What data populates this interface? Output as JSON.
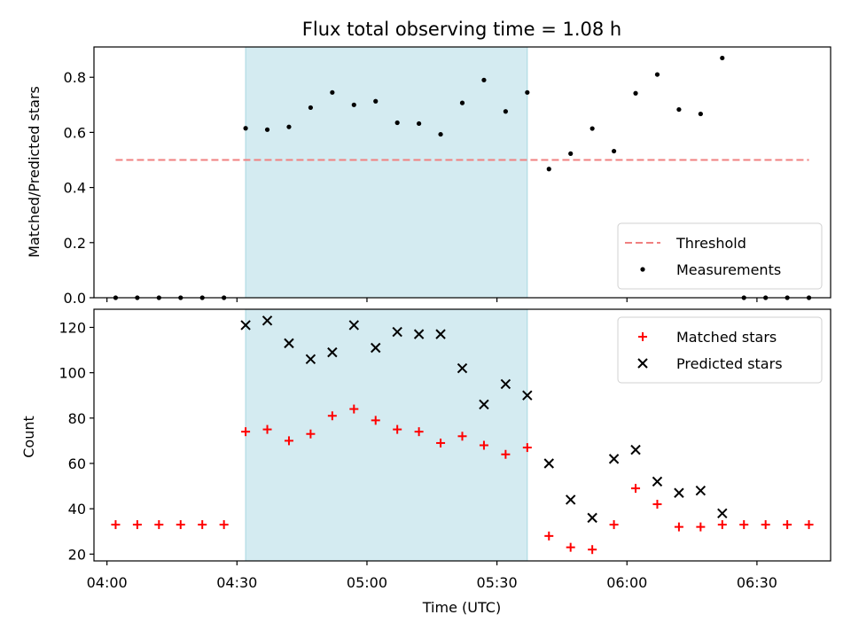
{
  "chart_data": [
    {
      "type": "scatter",
      "title": "Flux total observing time = 1.08 h",
      "xlabel": "",
      "ylabel": "Matched/Predicted stars",
      "ylim": [
        0,
        0.91
      ],
      "yticks": [
        "0.0",
        "0.2",
        "0.4",
        "0.6",
        "0.8"
      ],
      "grid": false,
      "legend_position": "bottom-right",
      "highlight_span": {
        "start": "04:32",
        "end": "05:37"
      },
      "threshold": {
        "name": "Threshold",
        "value": 0.5,
        "x_start": "04:02",
        "x_end": "06:42",
        "color": "#f08080"
      },
      "series": [
        {
          "name": "Measurements",
          "marker": "dot",
          "color": "#000000",
          "x": [
            "04:02",
            "04:07",
            "04:12",
            "04:17",
            "04:22",
            "04:27",
            "04:32",
            "04:37",
            "04:42",
            "04:47",
            "04:52",
            "04:57",
            "05:02",
            "05:07",
            "05:12",
            "05:17",
            "05:22",
            "05:27",
            "05:32",
            "05:37",
            "05:42",
            "05:47",
            "05:52",
            "05:57",
            "06:02",
            "06:07",
            "06:12",
            "06:17",
            "06:22",
            "06:27",
            "06:32",
            "06:37",
            "06:42"
          ],
          "y": [
            0,
            0,
            0,
            0,
            0,
            0,
            0.615,
            0.61,
            0.62,
            0.69,
            0.745,
            0.7,
            0.713,
            0.635,
            0.632,
            0.593,
            0.707,
            0.79,
            0.676,
            0.745,
            0.467,
            0.523,
            0.614,
            0.532,
            0.742,
            0.81,
            0.683,
            0.667,
            0.87,
            0,
            0,
            0,
            0
          ]
        }
      ]
    },
    {
      "type": "scatter",
      "title": "",
      "xlabel": "Time (UTC)",
      "ylabel": "Count",
      "ylim": [
        17,
        128
      ],
      "yticks": [
        "20",
        "40",
        "60",
        "80",
        "100",
        "120"
      ],
      "xticks": [
        "04:00",
        "04:30",
        "05:00",
        "05:30",
        "06:00",
        "06:30"
      ],
      "grid": false,
      "legend_position": "top-right",
      "highlight_span": {
        "start": "04:32",
        "end": "05:37"
      },
      "series": [
        {
          "name": "Matched stars",
          "marker": "plus",
          "color": "#ff0000",
          "x": [
            "04:02",
            "04:07",
            "04:12",
            "04:17",
            "04:22",
            "04:27",
            "04:32",
            "04:37",
            "04:42",
            "04:47",
            "04:52",
            "04:57",
            "05:02",
            "05:07",
            "05:12",
            "05:17",
            "05:22",
            "05:27",
            "05:32",
            "05:37",
            "05:42",
            "05:47",
            "05:52",
            "05:57",
            "06:02",
            "06:07",
            "06:12",
            "06:17",
            "06:22",
            "06:27",
            "06:32",
            "06:37",
            "06:42"
          ],
          "y": [
            33,
            33,
            33,
            33,
            33,
            33,
            74,
            75,
            70,
            73,
            81,
            84,
            79,
            75,
            74,
            69,
            72,
            68,
            64,
            67,
            28,
            23,
            22,
            33,
            49,
            42,
            32,
            32,
            33,
            33,
            33,
            33,
            33
          ]
        },
        {
          "name": "Predicted stars",
          "marker": "x",
          "color": "#000000",
          "x": [
            "04:32",
            "04:37",
            "04:42",
            "04:47",
            "04:52",
            "04:57",
            "05:02",
            "05:07",
            "05:12",
            "05:17",
            "05:22",
            "05:27",
            "05:32",
            "05:37",
            "05:42",
            "05:47",
            "05:52",
            "05:57",
            "06:02",
            "06:07",
            "06:12",
            "06:17",
            "06:22"
          ],
          "y": [
            121,
            123,
            113,
            106,
            109,
            121,
            111,
            118,
            117,
            117,
            102,
            86,
            95,
            90,
            60,
            44,
            36,
            62,
            66,
            52,
            47,
            48,
            38
          ]
        }
      ]
    }
  ],
  "colors": {
    "highlight": "#d4ebf1",
    "highlight_edge": "#a8d8e0"
  }
}
